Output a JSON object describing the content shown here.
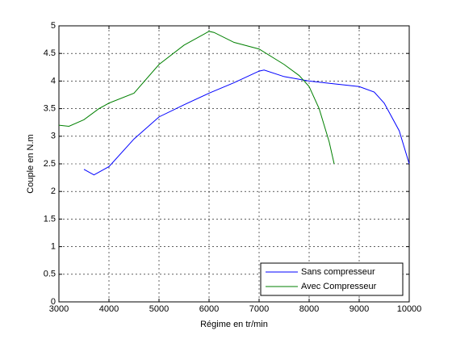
{
  "chart_data": {
    "type": "line",
    "xlabel": "Régime en tr/min",
    "ylabel": "Couple en N.m",
    "xlim": [
      3000,
      10000
    ],
    "xticks": [
      3000,
      4000,
      5000,
      6000,
      7000,
      8000,
      9000,
      10000
    ],
    "ylim": [
      0,
      5
    ],
    "yticks": [
      0,
      0.5,
      1,
      1.5,
      2,
      2.5,
      3,
      3.5,
      4,
      4.5,
      5
    ],
    "grid": true,
    "legend": "lower right",
    "series": [
      {
        "name": "Sans compresseur",
        "color": "#0000ff",
        "x": [
          3500,
          3700,
          4000,
          4500,
          5000,
          5500,
          6000,
          6500,
          7000,
          7100,
          7500,
          8000,
          8500,
          9000,
          9300,
          9500,
          9800,
          10000
        ],
        "values": [
          2.4,
          2.3,
          2.45,
          2.95,
          3.35,
          3.57,
          3.78,
          3.97,
          4.18,
          4.2,
          4.08,
          4.0,
          3.95,
          3.9,
          3.8,
          3.6,
          3.1,
          2.5
        ]
      },
      {
        "name": "Avec Compresseur",
        "color": "#008000",
        "x": [
          3000,
          3200,
          3500,
          3800,
          4000,
          4500,
          5000,
          5500,
          6000,
          6100,
          6500,
          7000,
          7500,
          7800,
          8000,
          8200,
          8400,
          8500
        ],
        "values": [
          3.2,
          3.18,
          3.3,
          3.5,
          3.6,
          3.78,
          4.3,
          4.65,
          4.9,
          4.88,
          4.7,
          4.58,
          4.3,
          4.1,
          3.9,
          3.5,
          2.9,
          2.5
        ]
      }
    ]
  }
}
